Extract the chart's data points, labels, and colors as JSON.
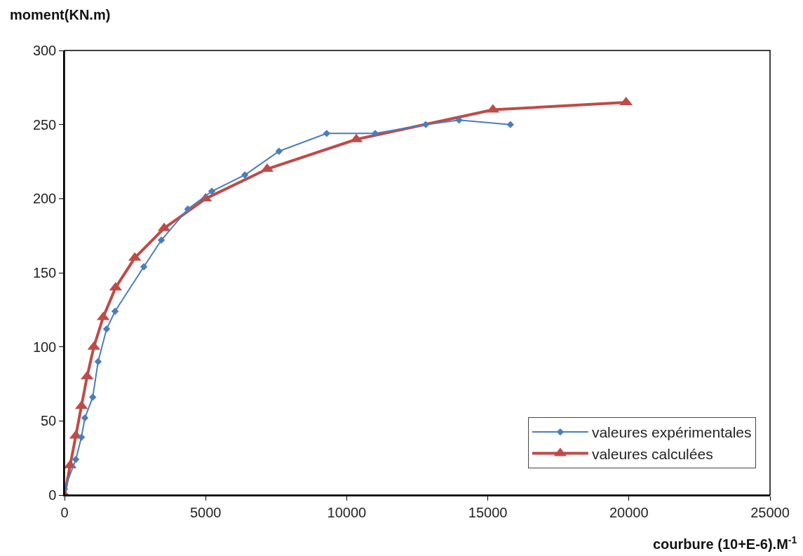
{
  "chart_data": {
    "type": "line",
    "xlabel": "courbure (10+E-6).M$^{-1}$",
    "ylabel": "moment(KN.m)",
    "xlim": [
      0,
      25000
    ],
    "xticks": [
      0,
      5000,
      10000,
      15000,
      20000,
      25000
    ],
    "ylim": [
      0,
      300
    ],
    "yticks": [
      0,
      50,
      100,
      150,
      200,
      250,
      300
    ],
    "legend": "bottom right",
    "series": [
      {
        "name": "valeures expérimentales",
        "color": "#4a7ebb",
        "marker": "diamond",
        "line_style": "solid",
        "x": [
          0,
          400,
          600,
          720,
          1000,
          1190,
          1490,
          1790,
          2810,
          3430,
          4370,
          5220,
          6390,
          7600,
          9290,
          11010,
          12800,
          13980,
          15800
        ],
        "values": [
          4,
          24,
          39,
          52,
          66,
          90,
          112,
          124,
          154,
          172,
          193,
          205,
          216,
          232,
          244,
          244,
          250,
          253,
          250
        ]
      },
      {
        "name": "valeures calculées",
        "color": "#be4b48",
        "marker": "triangle",
        "line_style": "solid",
        "x": [
          0,
          200,
          400,
          600,
          800,
          1040,
          1370,
          1810,
          2490,
          3530,
          5000,
          7180,
          10340,
          15180,
          19900
        ],
        "values": [
          0,
          20,
          40,
          60,
          80,
          100,
          120,
          140,
          160,
          180,
          200,
          220,
          240,
          260,
          265
        ]
      }
    ]
  }
}
